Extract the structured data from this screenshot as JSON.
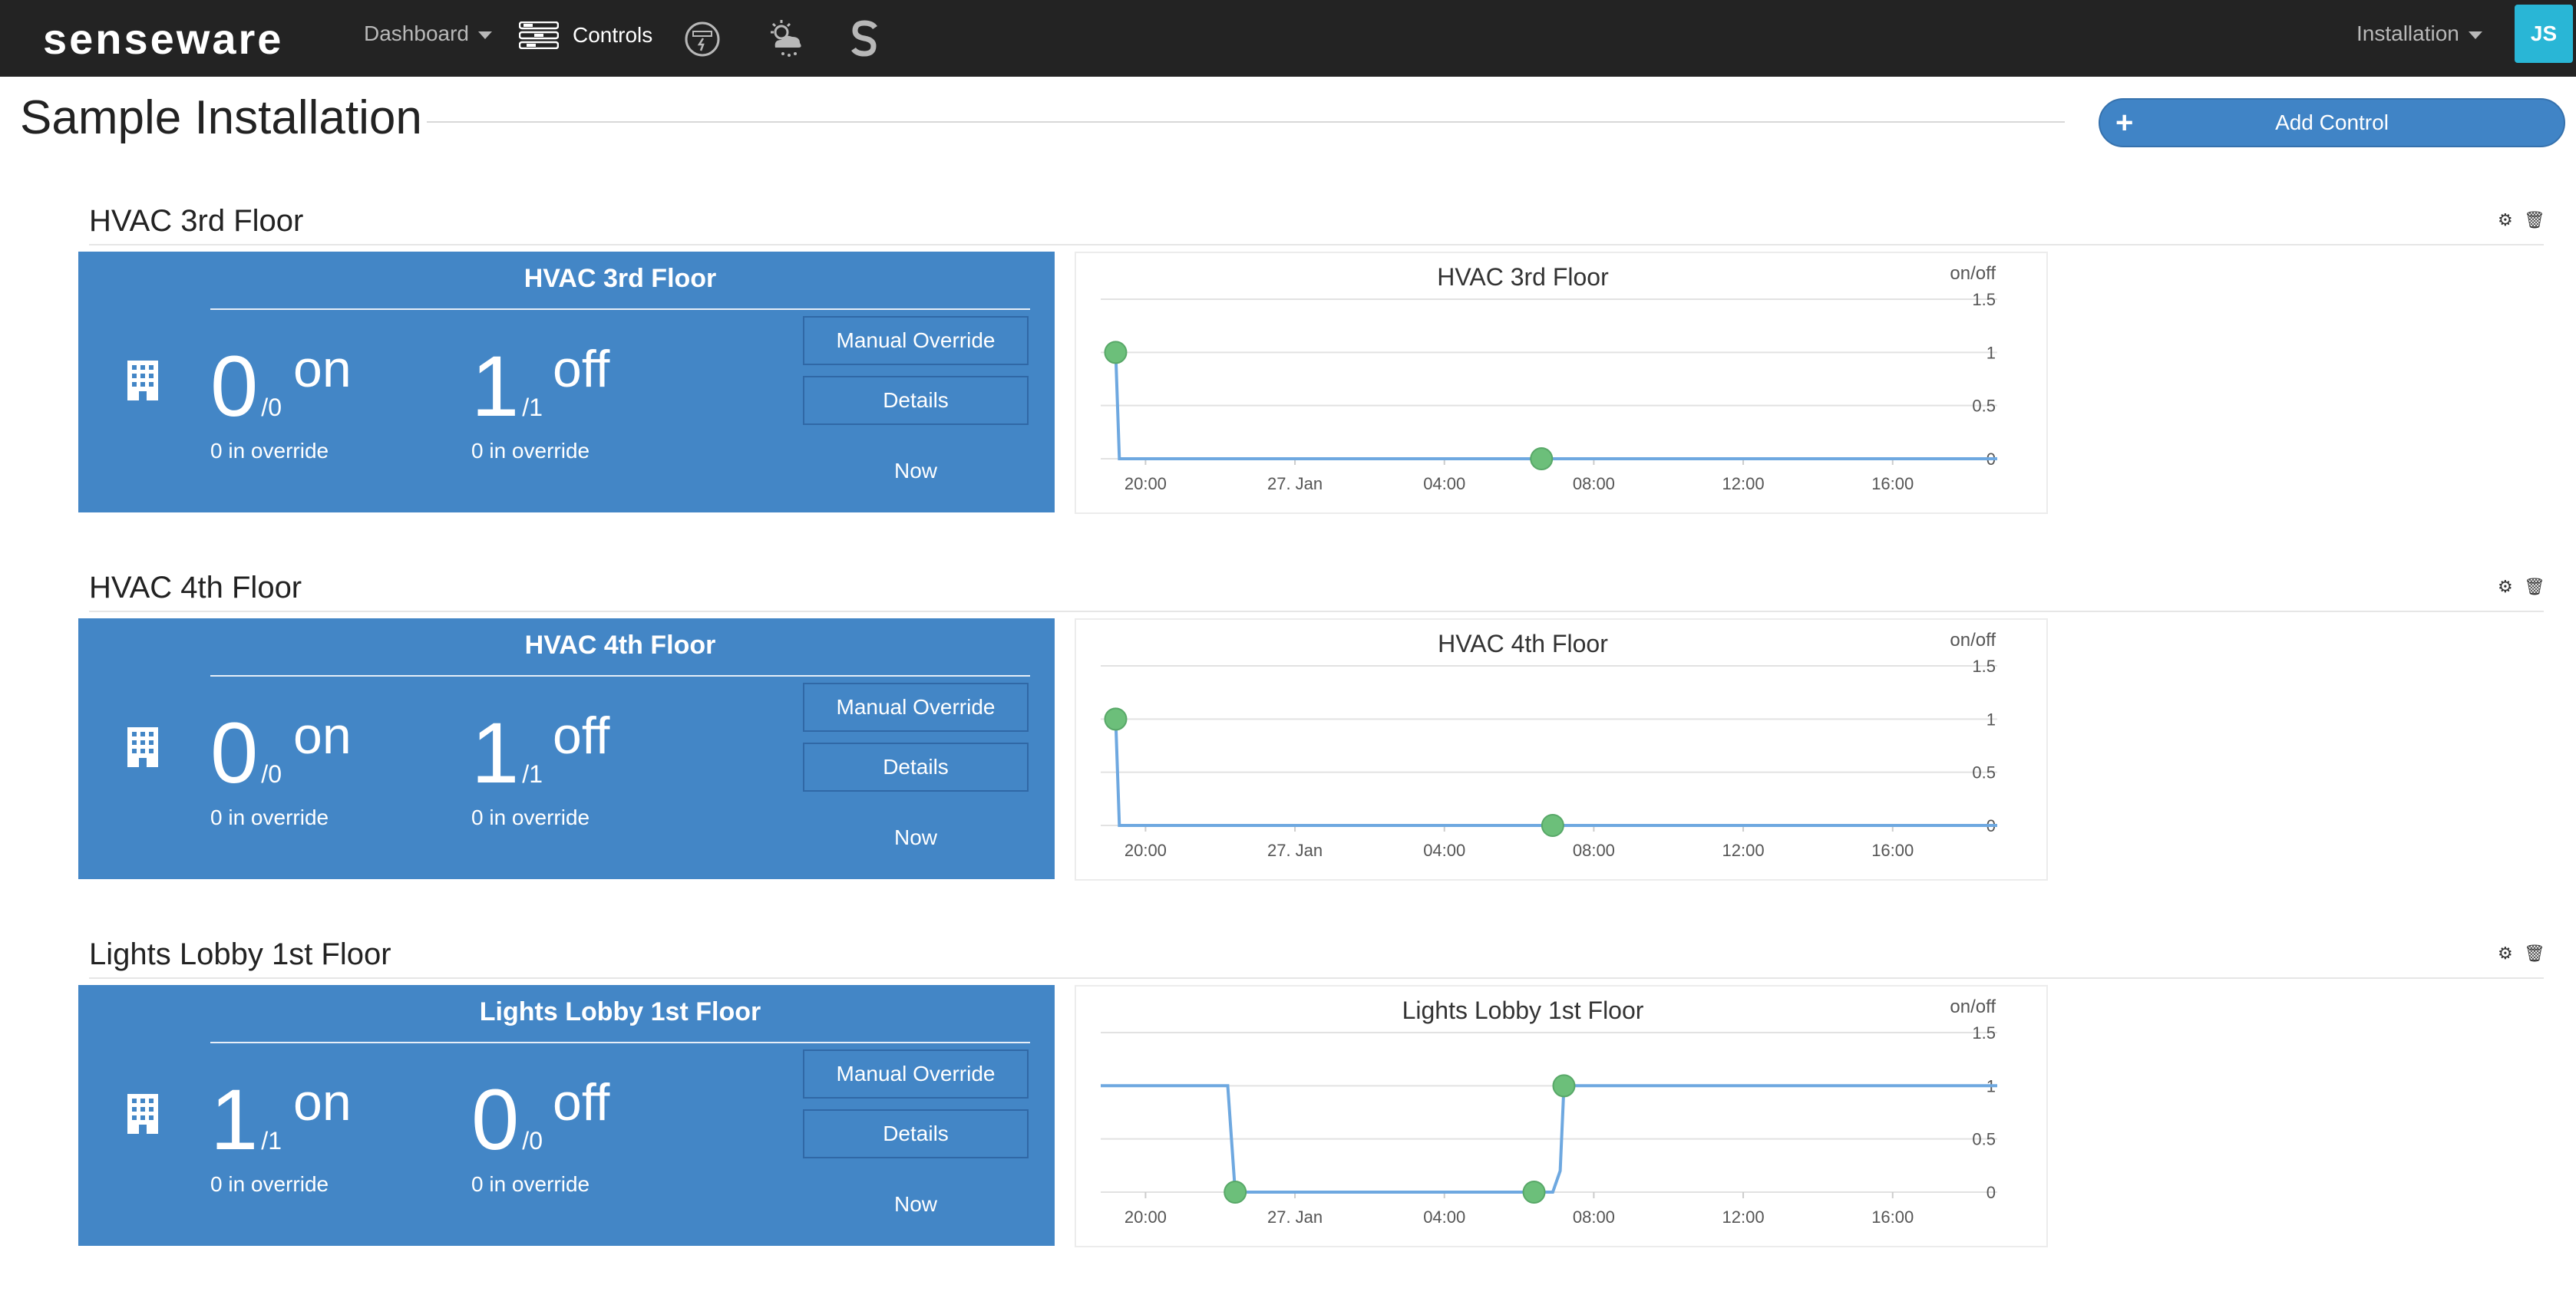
{
  "nav": {
    "logo": "senseware",
    "dashboard_label": "Dashboard",
    "controls_label": "Controls",
    "installation_label": "Installation",
    "avatar_initials": "JS",
    "icons": [
      "menu-icon",
      "power-meter-icon",
      "weather-icon",
      "s-logo-icon"
    ]
  },
  "page": {
    "title": "Sample Installation",
    "add_control_label": "Add Control"
  },
  "colors": {
    "nav_bg": "#232323",
    "panel_blue": "#4386c6",
    "button_blue": "#4084c6",
    "avatar_teal": "#29b6d6",
    "series_line": "#6ea8e0",
    "marker_green": "#6cbf7a"
  },
  "controls": [
    {
      "section_title": "HVAC 3rd Floor",
      "panel_title": "HVAC 3rd Floor",
      "on": {
        "count": "0",
        "total": "/0",
        "label": "on",
        "override": "0 in override"
      },
      "off": {
        "count": "1",
        "total": "/1",
        "label": "off",
        "override": "0 in override"
      },
      "manual_override_label": "Manual Override",
      "details_label": "Details",
      "now_label": "Now"
    },
    {
      "section_title": "HVAC 4th Floor",
      "panel_title": "HVAC 4th Floor",
      "on": {
        "count": "0",
        "total": "/0",
        "label": "on",
        "override": "0 in override"
      },
      "off": {
        "count": "1",
        "total": "/1",
        "label": "off",
        "override": "0 in override"
      },
      "manual_override_label": "Manual Override",
      "details_label": "Details",
      "now_label": "Now"
    },
    {
      "section_title": "Lights Lobby 1st Floor",
      "panel_title": "Lights Lobby 1st Floor",
      "on": {
        "count": "1",
        "total": "/1",
        "label": "on",
        "override": "0 in override"
      },
      "off": {
        "count": "0",
        "total": "/0",
        "label": "off",
        "override": "0 in override"
      },
      "manual_override_label": "Manual Override",
      "details_label": "Details",
      "now_label": "Now"
    }
  ],
  "chart_data": [
    {
      "type": "line",
      "title": "HVAC 3rd Floor",
      "ylabel": "on/off",
      "ylim": [
        0,
        1.5
      ],
      "yticks": [
        "0",
        "0.5",
        "1",
        "1.5"
      ],
      "xticks": [
        "20:00",
        "27. Jan",
        "04:00",
        "08:00",
        "12:00",
        "16:00"
      ],
      "xlim": [
        18.8,
        42.8
      ],
      "series": [
        {
          "values": [
            [
              19.2,
              1
            ],
            [
              19.3,
              0
            ],
            [
              42.8,
              0
            ]
          ]
        }
      ],
      "markers": [
        [
          19.2,
          1
        ],
        [
          30.6,
          0
        ]
      ]
    },
    {
      "type": "line",
      "title": "HVAC 4th Floor",
      "ylabel": "on/off",
      "ylim": [
        0,
        1.5
      ],
      "yticks": [
        "0",
        "0.5",
        "1",
        "1.5"
      ],
      "xticks": [
        "20:00",
        "27. Jan",
        "04:00",
        "08:00",
        "12:00",
        "16:00"
      ],
      "xlim": [
        18.8,
        42.8
      ],
      "series": [
        {
          "values": [
            [
              19.2,
              1
            ],
            [
              19.3,
              0
            ],
            [
              42.8,
              0
            ]
          ]
        }
      ],
      "markers": [
        [
          19.2,
          1
        ],
        [
          30.9,
          0
        ]
      ]
    },
    {
      "type": "line",
      "title": "Lights Lobby 1st Floor",
      "ylabel": "on/off",
      "ylim": [
        0,
        1.5
      ],
      "yticks": [
        "0",
        "0.5",
        "1",
        "1.5"
      ],
      "xticks": [
        "20:00",
        "27. Jan",
        "04:00",
        "08:00",
        "12:00",
        "16:00"
      ],
      "xlim": [
        18.8,
        42.8
      ],
      "series": [
        {
          "values": [
            [
              18.8,
              1
            ],
            [
              22.2,
              1
            ],
            [
              22.4,
              0
            ],
            [
              30.9,
              0
            ],
            [
              31.1,
              0.2
            ],
            [
              31.2,
              1
            ],
            [
              42.8,
              1
            ]
          ]
        }
      ],
      "markers": [
        [
          22.4,
          0
        ],
        [
          30.4,
          0
        ],
        [
          31.2,
          1
        ]
      ]
    }
  ]
}
